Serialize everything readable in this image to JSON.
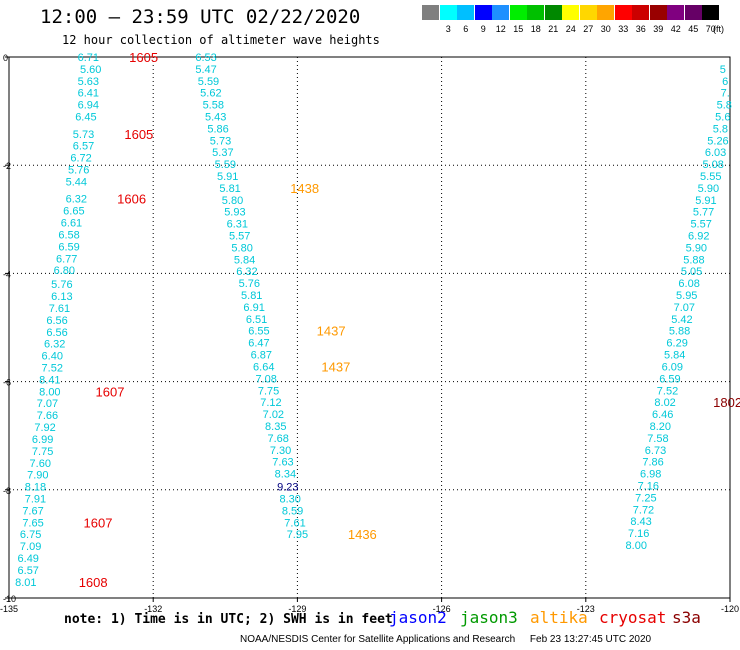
{
  "title": "12:00 – 23:59 UTC 02/22/2020",
  "subtitle": "12 hour collection of altimeter wave heights",
  "legend": {
    "unit": "(ft)",
    "items": [
      {
        "color": "#7f7f7f",
        "label": ""
      },
      {
        "color": "#00ffff",
        "label": "3"
      },
      {
        "color": "#00bfff",
        "label": "6"
      },
      {
        "color": "#0000ff",
        "label": "9"
      },
      {
        "color": "#1e90ff",
        "label": "12"
      },
      {
        "color": "#00ee00",
        "label": "15"
      },
      {
        "color": "#00c000",
        "label": "18"
      },
      {
        "color": "#008800",
        "label": "21"
      },
      {
        "color": "#ffff00",
        "label": "24"
      },
      {
        "color": "#ffd700",
        "label": "27"
      },
      {
        "color": "#ffa500",
        "label": "30"
      },
      {
        "color": "#ff0000",
        "label": "33"
      },
      {
        "color": "#cc0000",
        "label": "36"
      },
      {
        "color": "#990000",
        "label": "39"
      },
      {
        "color": "#800080",
        "label": "42"
      },
      {
        "color": "#660066",
        "label": "45"
      },
      {
        "color": "#000000",
        "label": "70"
      }
    ]
  },
  "map": {
    "lon_ticks": [
      "-135",
      "-132",
      "-129",
      "-126",
      "-123",
      "-120"
    ],
    "lat_ticks": [
      "0",
      "-2",
      "-4",
      "-6",
      "-8",
      "-10"
    ],
    "lon_range": [
      -135,
      -120
    ],
    "lat_range": [
      0,
      -10
    ]
  },
  "colors": {
    "swh_label": "#00c8d8",
    "swh_dark": "#000080",
    "cryosat": "#e60000",
    "altika": "#ff9900",
    "s3a": "#8b0000",
    "jason2": "#0000ff",
    "jason3": "#009900"
  },
  "tracks": [
    {
      "name": "track-1",
      "points": [
        {
          "lon": -133.35,
          "lat": 0.0,
          "swh": "6.71"
        },
        {
          "lon": -133.3,
          "lat": -0.22,
          "swh": "5.60"
        },
        {
          "lon": -133.35,
          "lat": -0.44,
          "swh": "5.63"
        },
        {
          "lon": -133.35,
          "lat": -0.66,
          "swh": "6.41"
        },
        {
          "lon": -133.35,
          "lat": -0.88,
          "swh": "6.94"
        },
        {
          "lon": -133.4,
          "lat": -1.1,
          "swh": "6.45"
        },
        {
          "lon": -133.45,
          "lat": -1.42,
          "swh": "5.73"
        },
        {
          "lon": -133.45,
          "lat": -1.64,
          "swh": "6.57"
        },
        {
          "lon": -133.5,
          "lat": -1.86,
          "swh": "6.72"
        },
        {
          "lon": -133.55,
          "lat": -2.08,
          "swh": "5.76"
        },
        {
          "lon": -133.6,
          "lat": -2.3,
          "swh": "5.44"
        },
        {
          "lon": -133.6,
          "lat": -2.62,
          "swh": "6.32"
        },
        {
          "lon": -133.65,
          "lat": -2.84,
          "swh": "6.65"
        },
        {
          "lon": -133.7,
          "lat": -3.06,
          "swh": "6.61"
        },
        {
          "lon": -133.75,
          "lat": -3.28,
          "swh": "6.58"
        },
        {
          "lon": -133.75,
          "lat": -3.5,
          "swh": "6.59"
        },
        {
          "lon": -133.8,
          "lat": -3.72,
          "swh": "6.77"
        },
        {
          "lon": -133.85,
          "lat": -3.94,
          "swh": "6.80"
        },
        {
          "lon": -133.9,
          "lat": -4.2,
          "swh": "5.76"
        },
        {
          "lon": -133.9,
          "lat": -4.42,
          "swh": "6.13"
        },
        {
          "lon": -133.95,
          "lat": -4.64,
          "swh": "7.61"
        },
        {
          "lon": -134.0,
          "lat": -4.86,
          "swh": "6.56"
        },
        {
          "lon": -134.0,
          "lat": -5.08,
          "swh": "6.56"
        },
        {
          "lon": -134.05,
          "lat": -5.3,
          "swh": "6.32"
        },
        {
          "lon": -134.1,
          "lat": -5.52,
          "swh": "6.40"
        },
        {
          "lon": -134.1,
          "lat": -5.74,
          "swh": "7.52"
        },
        {
          "lon": -134.15,
          "lat": -5.96,
          "swh": "8.41"
        },
        {
          "lon": -134.15,
          "lat": -6.18,
          "swh": "8.00"
        },
        {
          "lon": -134.2,
          "lat": -6.4,
          "swh": "7.07"
        },
        {
          "lon": -134.2,
          "lat": -6.62,
          "swh": "7.66"
        },
        {
          "lon": -134.25,
          "lat": -6.84,
          "swh": "7.92"
        },
        {
          "lon": -134.3,
          "lat": -7.06,
          "swh": "6.99"
        },
        {
          "lon": -134.3,
          "lat": -7.28,
          "swh": "7.75"
        },
        {
          "lon": -134.35,
          "lat": -7.5,
          "swh": "7.60"
        },
        {
          "lon": -134.4,
          "lat": -7.72,
          "swh": "7.90"
        },
        {
          "lon": -134.45,
          "lat": -7.94,
          "swh": "8.18"
        },
        {
          "lon": -134.45,
          "lat": -8.16,
          "swh": "7.91"
        },
        {
          "lon": -134.5,
          "lat": -8.38,
          "swh": "7.67"
        },
        {
          "lon": -134.5,
          "lat": -8.6,
          "swh": "7.65"
        },
        {
          "lon": -134.55,
          "lat": -8.82,
          "swh": "6.75"
        },
        {
          "lon": -134.55,
          "lat": -9.04,
          "swh": "7.09"
        },
        {
          "lon": -134.6,
          "lat": -9.26,
          "swh": "6.49"
        },
        {
          "lon": -134.6,
          "lat": -9.48,
          "swh": "6.57"
        },
        {
          "lon": -134.65,
          "lat": -9.7,
          "swh": "8.01"
        }
      ]
    },
    {
      "name": "track-2",
      "points": [
        {
          "lon": -130.9,
          "lat": 0.0,
          "swh": "6.53"
        },
        {
          "lon": -130.9,
          "lat": -0.22,
          "swh": "5.47"
        },
        {
          "lon": -130.85,
          "lat": -0.44,
          "swh": "5.59"
        },
        {
          "lon": -130.8,
          "lat": -0.66,
          "swh": "5.62"
        },
        {
          "lon": -130.75,
          "lat": -0.88,
          "swh": "5.58"
        },
        {
          "lon": -130.7,
          "lat": -1.1,
          "swh": "5.43"
        },
        {
          "lon": -130.65,
          "lat": -1.32,
          "swh": "5.86"
        },
        {
          "lon": -130.6,
          "lat": -1.54,
          "swh": "5.73"
        },
        {
          "lon": -130.55,
          "lat": -1.76,
          "swh": "5.37"
        },
        {
          "lon": -130.5,
          "lat": -1.98,
          "swh": "5.59"
        },
        {
          "lon": -130.45,
          "lat": -2.2,
          "swh": "5.91"
        },
        {
          "lon": -130.4,
          "lat": -2.42,
          "swh": "5.81"
        },
        {
          "lon": -130.35,
          "lat": -2.64,
          "swh": "5.80"
        },
        {
          "lon": -130.3,
          "lat": -2.86,
          "swh": "5.93"
        },
        {
          "lon": -130.25,
          "lat": -3.08,
          "swh": "6.31"
        },
        {
          "lon": -130.2,
          "lat": -3.3,
          "swh": "5.57"
        },
        {
          "lon": -130.15,
          "lat": -3.52,
          "swh": "5.80"
        },
        {
          "lon": -130.1,
          "lat": -3.74,
          "swh": "5.84"
        },
        {
          "lon": -130.05,
          "lat": -3.96,
          "swh": "6.32"
        },
        {
          "lon": -130.0,
          "lat": -4.18,
          "swh": "5.76"
        },
        {
          "lon": -129.95,
          "lat": -4.4,
          "swh": "5.81"
        },
        {
          "lon": -129.9,
          "lat": -4.62,
          "swh": "6.91"
        },
        {
          "lon": -129.85,
          "lat": -4.84,
          "swh": "6.51"
        },
        {
          "lon": -129.8,
          "lat": -5.06,
          "swh": "6.55"
        },
        {
          "lon": -129.8,
          "lat": -5.28,
          "swh": "6.47"
        },
        {
          "lon": -129.75,
          "lat": -5.5,
          "swh": "6.87"
        },
        {
          "lon": -129.7,
          "lat": -5.72,
          "swh": "6.64"
        },
        {
          "lon": -129.65,
          "lat": -5.94,
          "swh": "7.08"
        },
        {
          "lon": -129.6,
          "lat": -6.16,
          "swh": "7.75"
        },
        {
          "lon": -129.55,
          "lat": -6.38,
          "swh": "7.12"
        },
        {
          "lon": -129.5,
          "lat": -6.6,
          "swh": "7.02"
        },
        {
          "lon": -129.45,
          "lat": -6.82,
          "swh": "8.35"
        },
        {
          "lon": -129.4,
          "lat": -7.04,
          "swh": "7.68"
        },
        {
          "lon": -129.35,
          "lat": -7.26,
          "swh": "7.30"
        },
        {
          "lon": -129.3,
          "lat": -7.48,
          "swh": "7.63"
        },
        {
          "lon": -129.25,
          "lat": -7.7,
          "swh": "8.34"
        },
        {
          "lon": -129.2,
          "lat": -7.94,
          "swh": "9.23",
          "dark": true
        },
        {
          "lon": -129.15,
          "lat": -8.16,
          "swh": "8.30"
        },
        {
          "lon": -129.1,
          "lat": -8.38,
          "swh": "8.59"
        },
        {
          "lon": -129.05,
          "lat": -8.6,
          "swh": "7.61"
        },
        {
          "lon": -129.0,
          "lat": -8.82,
          "swh": "7.95"
        }
      ]
    },
    {
      "name": "track-3",
      "points": [
        {
          "lon": -120.15,
          "lat": -0.22,
          "swh": "5"
        },
        {
          "lon": -120.1,
          "lat": -0.44,
          "swh": "6"
        },
        {
          "lon": -120.1,
          "lat": -0.66,
          "swh": "7."
        },
        {
          "lon": -120.12,
          "lat": -0.88,
          "swh": "5.8"
        },
        {
          "lon": -120.15,
          "lat": -1.1,
          "swh": "5.6"
        },
        {
          "lon": -120.2,
          "lat": -1.32,
          "swh": "5.8"
        },
        {
          "lon": -120.25,
          "lat": -1.54,
          "swh": "5.26"
        },
        {
          "lon": -120.3,
          "lat": -1.76,
          "swh": "6.03"
        },
        {
          "lon": -120.35,
          "lat": -1.98,
          "swh": "5.08"
        },
        {
          "lon": -120.4,
          "lat": -2.2,
          "swh": "5.55"
        },
        {
          "lon": -120.45,
          "lat": -2.42,
          "swh": "5.90"
        },
        {
          "lon": -120.5,
          "lat": -2.64,
          "swh": "5.91"
        },
        {
          "lon": -120.55,
          "lat": -2.86,
          "swh": "5.77"
        },
        {
          "lon": -120.6,
          "lat": -3.08,
          "swh": "5.57"
        },
        {
          "lon": -120.65,
          "lat": -3.3,
          "swh": "6.92"
        },
        {
          "lon": -120.7,
          "lat": -3.52,
          "swh": "5.90"
        },
        {
          "lon": -120.75,
          "lat": -3.74,
          "swh": "5.88"
        },
        {
          "lon": -120.8,
          "lat": -3.96,
          "swh": "5.05"
        },
        {
          "lon": -120.85,
          "lat": -4.18,
          "swh": "6.08"
        },
        {
          "lon": -120.9,
          "lat": -4.4,
          "swh": "5.95"
        },
        {
          "lon": -120.95,
          "lat": -4.62,
          "swh": "7.07"
        },
        {
          "lon": -121.0,
          "lat": -4.84,
          "swh": "5.42"
        },
        {
          "lon": -121.05,
          "lat": -5.06,
          "swh": "5.88"
        },
        {
          "lon": -121.1,
          "lat": -5.28,
          "swh": "6.29"
        },
        {
          "lon": -121.15,
          "lat": -5.5,
          "swh": "5.84"
        },
        {
          "lon": -121.2,
          "lat": -5.72,
          "swh": "6.09"
        },
        {
          "lon": -121.25,
          "lat": -5.94,
          "swh": "6.59"
        },
        {
          "lon": -121.3,
          "lat": -6.16,
          "swh": "7.52"
        },
        {
          "lon": -121.35,
          "lat": -6.38,
          "swh": "8.02"
        },
        {
          "lon": -121.4,
          "lat": -6.6,
          "swh": "6.46"
        },
        {
          "lon": -121.45,
          "lat": -6.82,
          "swh": "8.20"
        },
        {
          "lon": -121.5,
          "lat": -7.04,
          "swh": "7.58"
        },
        {
          "lon": -121.55,
          "lat": -7.26,
          "swh": "6.73"
        },
        {
          "lon": -121.6,
          "lat": -7.48,
          "swh": "7.86"
        },
        {
          "lon": -121.65,
          "lat": -7.7,
          "swh": "6.98"
        },
        {
          "lon": -121.7,
          "lat": -7.92,
          "swh": "7.16"
        },
        {
          "lon": -121.75,
          "lat": -8.14,
          "swh": "7.25"
        },
        {
          "lon": -121.8,
          "lat": -8.36,
          "swh": "7.72"
        },
        {
          "lon": -121.85,
          "lat": -8.58,
          "swh": "8.43"
        },
        {
          "lon": -121.9,
          "lat": -8.8,
          "swh": "7.16"
        },
        {
          "lon": -121.95,
          "lat": -9.02,
          "swh": "8.00"
        }
      ]
    }
  ],
  "time_labels": [
    {
      "lon": -132.5,
      "lat": 0.0,
      "text": "1605",
      "sat": "cryosat"
    },
    {
      "lon": -132.6,
      "lat": -1.42,
      "text": "1605",
      "sat": "cryosat"
    },
    {
      "lon": -132.75,
      "lat": -2.62,
      "text": "1606",
      "sat": "cryosat"
    },
    {
      "lon": -133.2,
      "lat": -6.18,
      "text": "1607",
      "sat": "cryosat"
    },
    {
      "lon": -133.45,
      "lat": -8.6,
      "text": "1607",
      "sat": "cryosat"
    },
    {
      "lon": -133.55,
      "lat": -9.7,
      "text": "1608",
      "sat": "cryosat"
    },
    {
      "lon": -129.15,
      "lat": -2.42,
      "text": "1438",
      "sat": "altika"
    },
    {
      "lon": -128.6,
      "lat": -5.06,
      "text": "1437",
      "sat": "altika"
    },
    {
      "lon": -128.5,
      "lat": -5.72,
      "text": "1437",
      "sat": "altika"
    },
    {
      "lon": -127.95,
      "lat": -8.82,
      "text": "1436",
      "sat": "altika"
    },
    {
      "lon": -120.35,
      "lat": -6.38,
      "text": "1802",
      "sat": "s3a"
    }
  ],
  "note": "note: 1) Time is in UTC; 2) SWH is in feet",
  "satellites": [
    {
      "key": "jason2",
      "label": "jason2"
    },
    {
      "key": "jason3",
      "label": "jason3"
    },
    {
      "key": "altika",
      "label": "altika"
    },
    {
      "key": "cryosat",
      "label": "cryosat"
    },
    {
      "key": "s3a",
      "label": "s3a"
    }
  ],
  "footer": {
    "org": "NOAA/NESDIS Center for Satellite Applications and Research",
    "timestamp": "Feb 23 13:27:45 UTC 2020"
  }
}
